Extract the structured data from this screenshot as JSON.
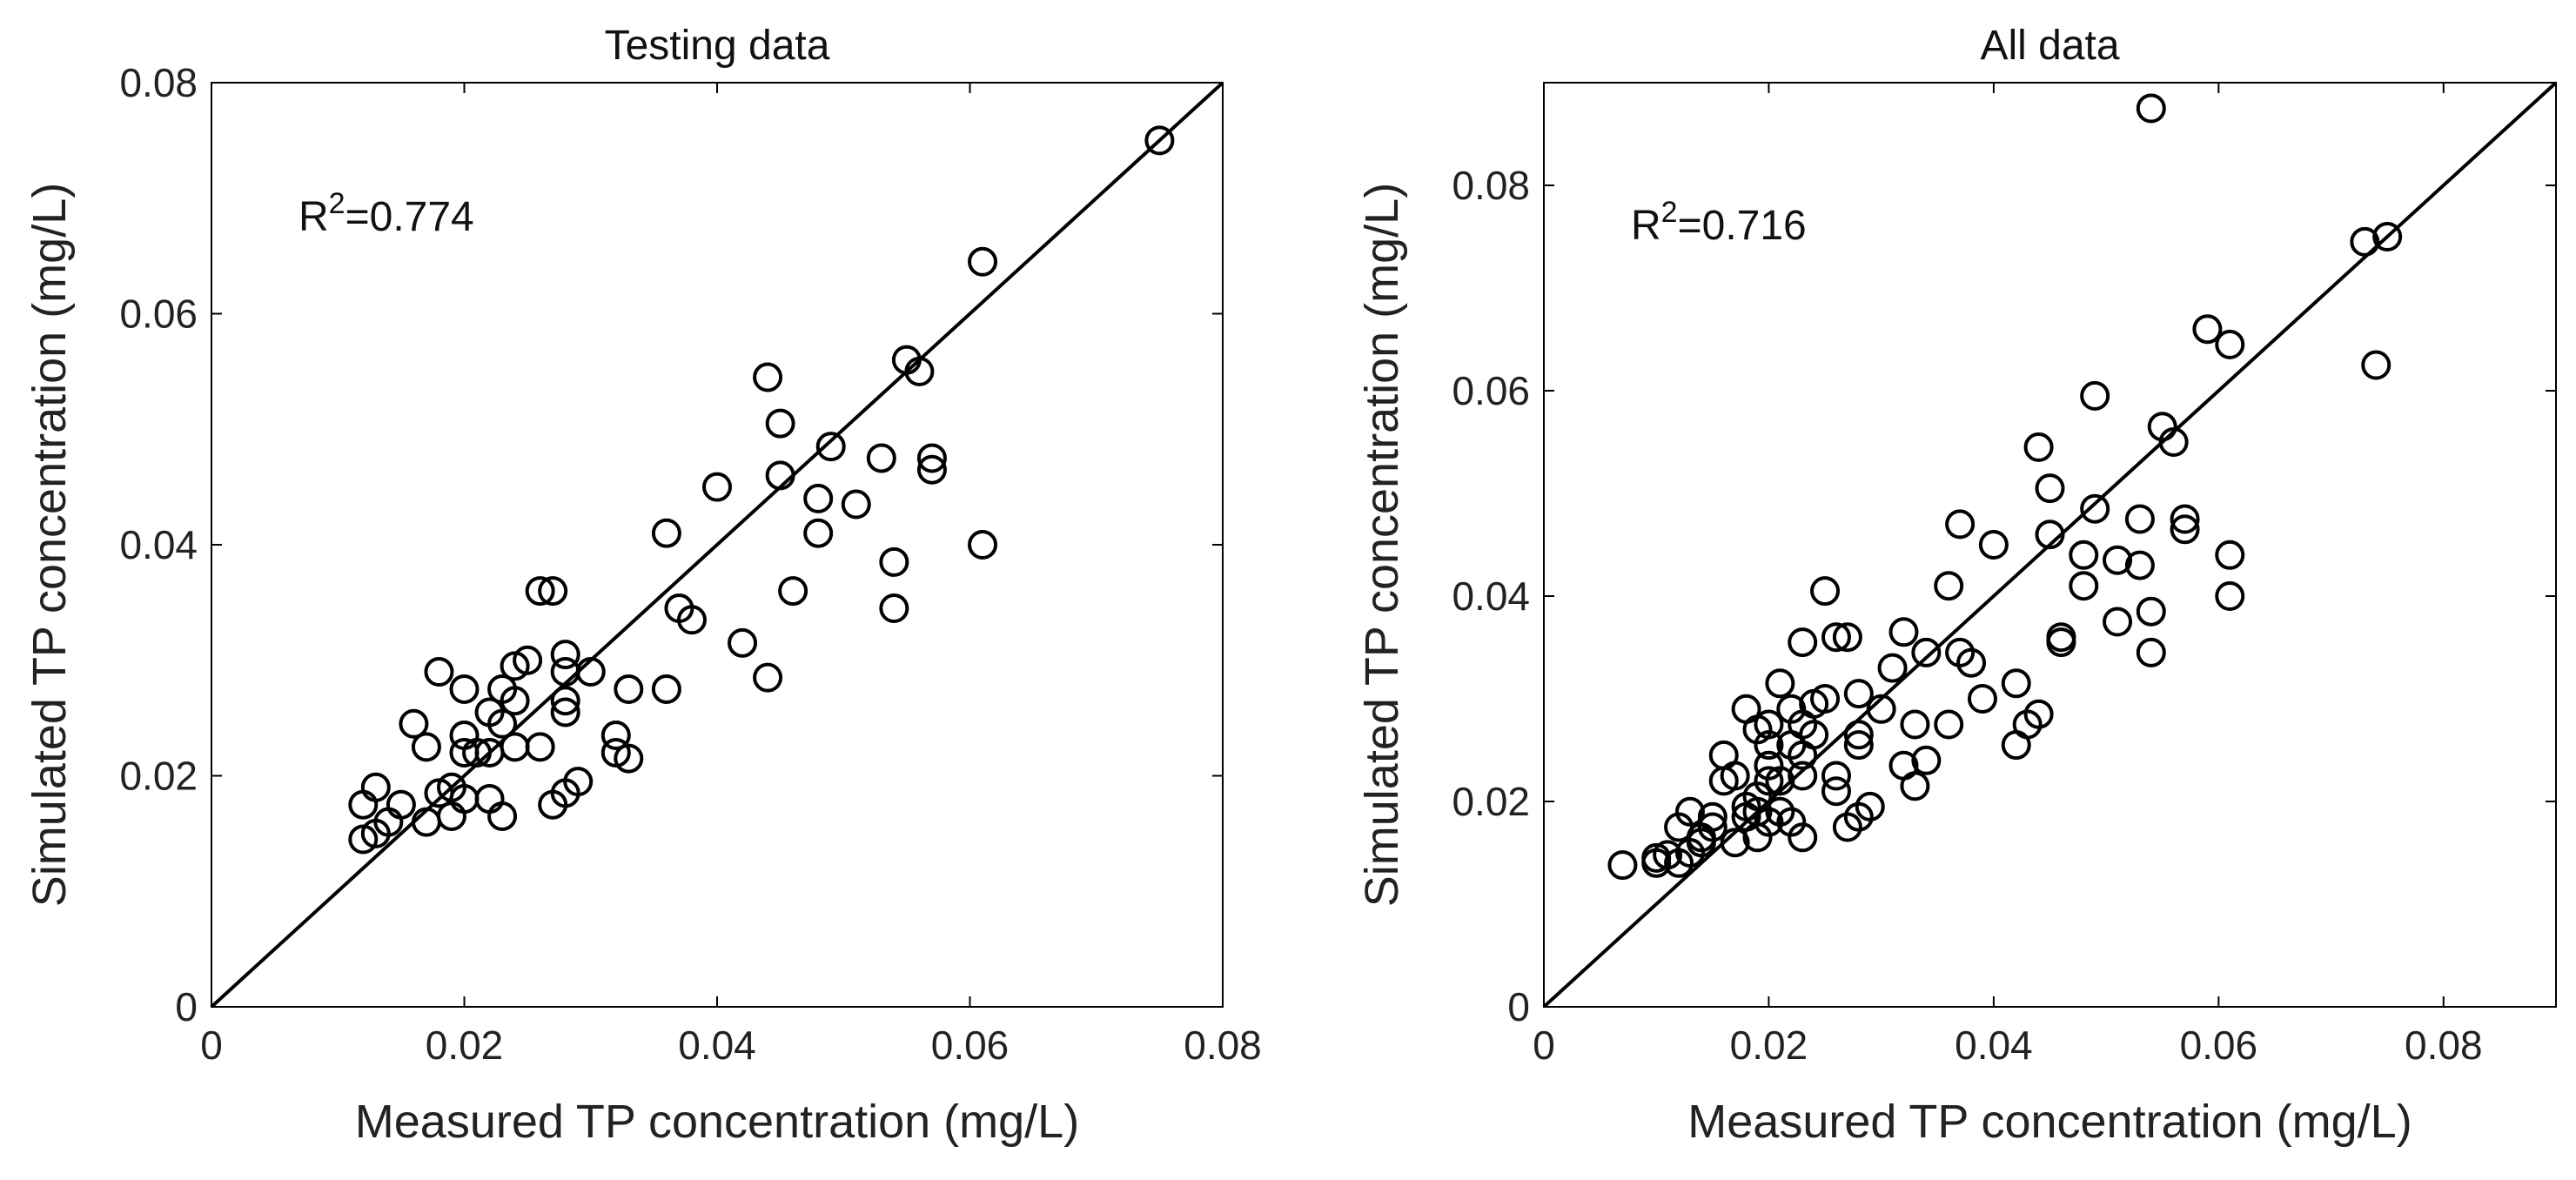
{
  "figure": {
    "panels": [
      {
        "id": "testing",
        "title": "Testing data",
        "annotation_prefix": "R",
        "annotation_sup": "2",
        "annotation_value": "=0.774",
        "xlabel": "Measured TP concentration (mg/L)",
        "ylabel": "Simulated TP concentration (mg/L)",
        "xlim": [
          0,
          0.08
        ],
        "ylim": [
          0,
          0.08
        ],
        "xticks": [
          0,
          0.02,
          0.04,
          0.06,
          0.08
        ],
        "yticks": [
          0,
          0.02,
          0.04,
          0.06,
          0.08
        ],
        "xtick_labels": [
          "0",
          "0.02",
          "0.04",
          "0.06",
          "0.08"
        ],
        "ytick_labels": [
          "0",
          "0.02",
          "0.04",
          "0.06",
          "0.08"
        ]
      },
      {
        "id": "all",
        "title": "All data",
        "annotation_prefix": "R",
        "annotation_sup": "2",
        "annotation_value": "=0.716",
        "xlabel": "Measured TP concentration (mg/L)",
        "ylabel": "Simulated TP concentration (mg/L)",
        "xlim": [
          0,
          0.09
        ],
        "ylim": [
          0,
          0.09
        ],
        "xticks": [
          0,
          0.02,
          0.04,
          0.06,
          0.08
        ],
        "yticks": [
          0,
          0.02,
          0.04,
          0.06,
          0.08
        ],
        "xtick_labels": [
          "0",
          "0.02",
          "0.04",
          "0.06",
          "0.08"
        ],
        "ytick_labels": [
          "0",
          "0.02",
          "0.04",
          "0.06",
          "0.08"
        ]
      }
    ]
  },
  "chart_data": [
    {
      "type": "scatter",
      "title": "Testing data",
      "xlabel": "Measured TP concentration (mg/L)",
      "ylabel": "Simulated TP concentration (mg/L)",
      "xlim": [
        0,
        0.08
      ],
      "ylim": [
        0,
        0.08
      ],
      "annotation": "R2=0.774",
      "reference_line": "1:1",
      "series": [
        {
          "name": "points",
          "marker": "open-circle",
          "points": [
            [
              0.012,
              0.0145
            ],
            [
              0.012,
              0.0175
            ],
            [
              0.013,
              0.015
            ],
            [
              0.013,
              0.019
            ],
            [
              0.014,
              0.016
            ],
            [
              0.015,
              0.0175
            ],
            [
              0.016,
              0.0245
            ],
            [
              0.017,
              0.0225
            ],
            [
              0.017,
              0.016
            ],
            [
              0.018,
              0.0185
            ],
            [
              0.018,
              0.029
            ],
            [
              0.019,
              0.0165
            ],
            [
              0.019,
              0.019
            ],
            [
              0.02,
              0.0275
            ],
            [
              0.02,
              0.0235
            ],
            [
              0.02,
              0.022
            ],
            [
              0.02,
              0.018
            ],
            [
              0.021,
              0.022
            ],
            [
              0.022,
              0.0255
            ],
            [
              0.022,
              0.018
            ],
            [
              0.022,
              0.022
            ],
            [
              0.023,
              0.0275
            ],
            [
              0.023,
              0.0245
            ],
            [
              0.023,
              0.0165
            ],
            [
              0.024,
              0.0295
            ],
            [
              0.024,
              0.0265
            ],
            [
              0.024,
              0.0225
            ],
            [
              0.025,
              0.03
            ],
            [
              0.026,
              0.036
            ],
            [
              0.026,
              0.0225
            ],
            [
              0.027,
              0.036
            ],
            [
              0.027,
              0.0175
            ],
            [
              0.028,
              0.0305
            ],
            [
              0.028,
              0.029
            ],
            [
              0.028,
              0.0265
            ],
            [
              0.028,
              0.0255
            ],
            [
              0.028,
              0.0185
            ],
            [
              0.029,
              0.0195
            ],
            [
              0.03,
              0.029
            ],
            [
              0.032,
              0.0235
            ],
            [
              0.032,
              0.022
            ],
            [
              0.033,
              0.0275
            ],
            [
              0.033,
              0.0215
            ],
            [
              0.036,
              0.041
            ],
            [
              0.036,
              0.0275
            ],
            [
              0.037,
              0.0345
            ],
            [
              0.038,
              0.0335
            ],
            [
              0.04,
              0.045
            ],
            [
              0.042,
              0.0315
            ],
            [
              0.044,
              0.0545
            ],
            [
              0.044,
              0.0285
            ],
            [
              0.045,
              0.0505
            ],
            [
              0.045,
              0.046
            ],
            [
              0.046,
              0.036
            ],
            [
              0.048,
              0.044
            ],
            [
              0.048,
              0.041
            ],
            [
              0.049,
              0.0485
            ],
            [
              0.051,
              0.0435
            ],
            [
              0.053,
              0.0475
            ],
            [
              0.054,
              0.0385
            ],
            [
              0.054,
              0.0345
            ],
            [
              0.055,
              0.056
            ],
            [
              0.056,
              0.055
            ],
            [
              0.057,
              0.0475
            ],
            [
              0.057,
              0.0465
            ],
            [
              0.061,
              0.0645
            ],
            [
              0.061,
              0.04
            ],
            [
              0.075,
              0.075
            ]
          ]
        }
      ]
    },
    {
      "type": "scatter",
      "title": "All data",
      "xlabel": "Measured TP concentration (mg/L)",
      "ylabel": "Simulated TP concentration (mg/L)",
      "xlim": [
        0,
        0.09
      ],
      "ylim": [
        0,
        0.09
      ],
      "annotation": "R2=0.716",
      "reference_line": "1:1",
      "series": [
        {
          "name": "points",
          "marker": "open-circle",
          "points": [
            [
              0.007,
              0.0138
            ],
            [
              0.01,
              0.014
            ],
            [
              0.01,
              0.0145
            ],
            [
              0.011,
              0.0148
            ],
            [
              0.012,
              0.0175
            ],
            [
              0.012,
              0.014
            ],
            [
              0.013,
              0.015
            ],
            [
              0.013,
              0.019
            ],
            [
              0.014,
              0.016
            ],
            [
              0.014,
              0.0165
            ],
            [
              0.015,
              0.0175
            ],
            [
              0.015,
              0.0185
            ],
            [
              0.016,
              0.0245
            ],
            [
              0.016,
              0.022
            ],
            [
              0.017,
              0.016
            ],
            [
              0.017,
              0.0225
            ],
            [
              0.018,
              0.0185
            ],
            [
              0.018,
              0.029
            ],
            [
              0.018,
              0.0195
            ],
            [
              0.019,
              0.0165
            ],
            [
              0.019,
              0.019
            ],
            [
              0.019,
              0.027
            ],
            [
              0.019,
              0.0205
            ],
            [
              0.02,
              0.0275
            ],
            [
              0.02,
              0.0235
            ],
            [
              0.02,
              0.022
            ],
            [
              0.02,
              0.018
            ],
            [
              0.02,
              0.0255
            ],
            [
              0.021,
              0.022
            ],
            [
              0.021,
              0.0315
            ],
            [
              0.021,
              0.019
            ],
            [
              0.022,
              0.0255
            ],
            [
              0.022,
              0.018
            ],
            [
              0.022,
              0.029
            ],
            [
              0.023,
              0.0275
            ],
            [
              0.023,
              0.0245
            ],
            [
              0.023,
              0.0165
            ],
            [
              0.023,
              0.0355
            ],
            [
              0.023,
              0.0225
            ],
            [
              0.024,
              0.0295
            ],
            [
              0.024,
              0.0265
            ],
            [
              0.025,
              0.03
            ],
            [
              0.025,
              0.0405
            ],
            [
              0.026,
              0.036
            ],
            [
              0.026,
              0.0225
            ],
            [
              0.026,
              0.021
            ],
            [
              0.027,
              0.036
            ],
            [
              0.027,
              0.0175
            ],
            [
              0.028,
              0.0305
            ],
            [
              0.028,
              0.0265
            ],
            [
              0.028,
              0.0255
            ],
            [
              0.028,
              0.0185
            ],
            [
              0.029,
              0.0195
            ],
            [
              0.03,
              0.029
            ],
            [
              0.031,
              0.033
            ],
            [
              0.032,
              0.0235
            ],
            [
              0.032,
              0.0365
            ],
            [
              0.033,
              0.0275
            ],
            [
              0.033,
              0.0215
            ],
            [
              0.034,
              0.0345
            ],
            [
              0.034,
              0.024
            ],
            [
              0.036,
              0.041
            ],
            [
              0.036,
              0.0275
            ],
            [
              0.037,
              0.047
            ],
            [
              0.037,
              0.0345
            ],
            [
              0.038,
              0.0335
            ],
            [
              0.039,
              0.03
            ],
            [
              0.04,
              0.045
            ],
            [
              0.042,
              0.0315
            ],
            [
              0.042,
              0.0255
            ],
            [
              0.043,
              0.0275
            ],
            [
              0.044,
              0.0545
            ],
            [
              0.044,
              0.0285
            ],
            [
              0.045,
              0.0505
            ],
            [
              0.045,
              0.046
            ],
            [
              0.046,
              0.036
            ],
            [
              0.046,
              0.0355
            ],
            [
              0.048,
              0.044
            ],
            [
              0.048,
              0.041
            ],
            [
              0.049,
              0.0595
            ],
            [
              0.049,
              0.0485
            ],
            [
              0.051,
              0.0435
            ],
            [
              0.051,
              0.0375
            ],
            [
              0.053,
              0.0475
            ],
            [
              0.053,
              0.043
            ],
            [
              0.054,
              0.0875
            ],
            [
              0.054,
              0.0385
            ],
            [
              0.054,
              0.0345
            ],
            [
              0.055,
              0.0565
            ],
            [
              0.056,
              0.055
            ],
            [
              0.057,
              0.0475
            ],
            [
              0.057,
              0.0465
            ],
            [
              0.059,
              0.066
            ],
            [
              0.061,
              0.0645
            ],
            [
              0.061,
              0.044
            ],
            [
              0.061,
              0.04
            ],
            [
              0.073,
              0.0745
            ],
            [
              0.074,
              0.0625
            ],
            [
              0.075,
              0.075
            ]
          ]
        }
      ]
    }
  ]
}
